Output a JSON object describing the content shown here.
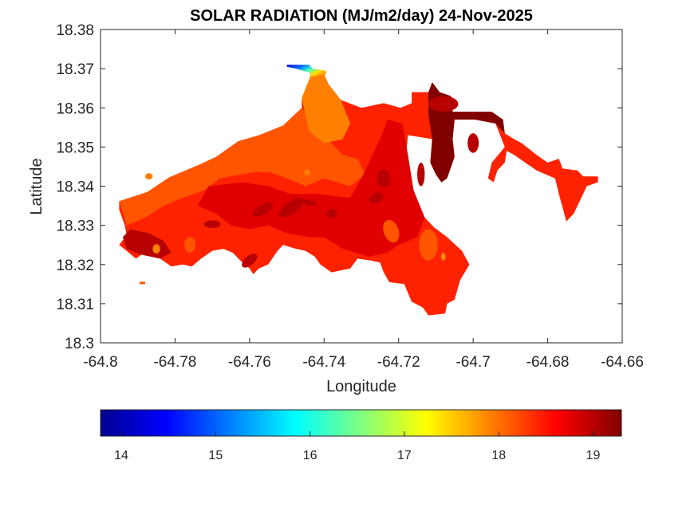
{
  "chart_data": {
    "type": "heatmap",
    "subtype": "filled-contour-map",
    "title": "SOLAR RADIATION (MJ/m2/day) 24-Nov-2025",
    "xlabel": "Longitude",
    "ylabel": "Latitude",
    "xlim": [
      -64.8,
      -64.66
    ],
    "ylim": [
      18.3,
      18.38
    ],
    "xticks": [
      -64.8,
      -64.78,
      -64.76,
      -64.74,
      -64.72,
      -64.7,
      -64.68,
      -64.66
    ],
    "xtick_labels": [
      "-64.8",
      "-64.78",
      "-64.76",
      "-64.74",
      "-64.72",
      "-64.7",
      "-64.68",
      "-64.66"
    ],
    "yticks": [
      18.3,
      18.31,
      18.32,
      18.33,
      18.34,
      18.35,
      18.36,
      18.37,
      18.38
    ],
    "ytick_labels": [
      "18.3",
      "18.31",
      "18.32",
      "18.33",
      "18.34",
      "18.35",
      "18.36",
      "18.37",
      "18.38"
    ],
    "grid": false,
    "colormap": "jet",
    "colorbar": {
      "placement": "bottom",
      "range": [
        13.78,
        19.3
      ],
      "ticks": [
        14,
        15,
        16,
        17,
        18,
        19
      ],
      "tick_labels": [
        "14",
        "15",
        "16",
        "17",
        "18",
        "19"
      ],
      "stops": [
        "#00008f",
        "#0000ff",
        "#00ffff",
        "#ffff00",
        "#ff0000",
        "#800000"
      ]
    },
    "levels": {
      "orange_light": {
        "value": 18.0,
        "color": "#ff8000"
      },
      "orange": {
        "value": 18.3,
        "color": "#ff5500"
      },
      "red_orange": {
        "value": 18.6,
        "color": "#ff2200"
      },
      "red": {
        "value": 18.8,
        "color": "#e00000"
      },
      "dark_red": {
        "value": 19.0,
        "color": "#b80000"
      },
      "maroon": {
        "value": 19.25,
        "color": "#800000"
      }
    },
    "regions": [
      {
        "name": "island-base",
        "level": "red_orange",
        "polygon": [
          [
            -64.7925,
            18.3362
          ],
          [
            -64.7875,
            18.3362
          ],
          [
            -64.7875,
            18.3385
          ],
          [
            -64.7815,
            18.3385
          ],
          [
            -64.7815,
            18.3423
          ],
          [
            -64.7735,
            18.3423
          ],
          [
            -64.7735,
            18.3455
          ],
          [
            -64.769,
            18.3455
          ],
          [
            -64.769,
            18.3475
          ],
          [
            -64.763,
            18.3475
          ],
          [
            -64.763,
            18.3515
          ],
          [
            -64.7575,
            18.3515
          ],
          [
            -64.7575,
            18.353
          ],
          [
            -64.751,
            18.353
          ],
          [
            -64.751,
            18.3555
          ],
          [
            -64.746,
            18.3555
          ],
          [
            -64.746,
            18.3625
          ],
          [
            -64.7435,
            18.3625
          ],
          [
            -64.7435,
            18.3685
          ],
          [
            -64.74,
            18.3685
          ],
          [
            -64.7388,
            18.366
          ],
          [
            -64.7355,
            18.362
          ],
          [
            -64.73,
            18.36
          ],
          [
            -64.724,
            18.3612
          ],
          [
            -64.7195,
            18.36
          ],
          [
            -64.7165,
            18.3612
          ],
          [
            -64.7165,
            18.364
          ],
          [
            -64.712,
            18.364
          ],
          [
            -64.711,
            18.3665
          ],
          [
            -64.709,
            18.364
          ],
          [
            -64.706,
            18.363
          ],
          [
            -64.7055,
            18.359
          ],
          [
            -64.7005,
            18.359
          ],
          [
            -64.699,
            18.359
          ],
          [
            -64.695,
            18.359
          ],
          [
            -64.692,
            18.357
          ],
          [
            -64.6915,
            18.3535
          ],
          [
            -64.689,
            18.352
          ],
          [
            -64.687,
            18.351
          ],
          [
            -64.683,
            18.348
          ],
          [
            -64.68,
            18.346
          ],
          [
            -64.677,
            18.347
          ],
          [
            -64.676,
            18.3445
          ],
          [
            -64.672,
            18.344
          ],
          [
            -64.6705,
            18.3425
          ],
          [
            -64.6665,
            18.3425
          ],
          [
            -64.6665,
            18.341
          ],
          [
            -64.6695,
            18.34
          ],
          [
            -64.671,
            18.337
          ],
          [
            -64.673,
            18.333
          ],
          [
            -64.675,
            18.331
          ],
          [
            -64.676,
            18.3345
          ],
          [
            -64.677,
            18.338
          ],
          [
            -64.678,
            18.342
          ],
          [
            -64.6805,
            18.343
          ],
          [
            -64.683,
            18.344
          ],
          [
            -64.686,
            18.346
          ],
          [
            -64.689,
            18.348
          ],
          [
            -64.691,
            18.349
          ],
          [
            -64.6915,
            18.346
          ],
          [
            -64.6935,
            18.344
          ],
          [
            -64.6945,
            18.341
          ],
          [
            -64.696,
            18.342
          ],
          [
            -64.695,
            18.346
          ],
          [
            -64.6915,
            18.35
          ],
          [
            -64.694,
            18.356
          ],
          [
            -64.6995,
            18.357
          ],
          [
            -64.705,
            18.357
          ],
          [
            -64.7055,
            18.352
          ],
          [
            -64.705,
            18.3475
          ],
          [
            -64.707,
            18.342
          ],
          [
            -64.7085,
            18.341
          ],
          [
            -64.71,
            18.343
          ],
          [
            -64.7115,
            18.346
          ],
          [
            -64.711,
            18.352
          ],
          [
            -64.714,
            18.3525
          ],
          [
            -64.7175,
            18.353
          ],
          [
            -64.718,
            18.348
          ],
          [
            -64.7175,
            18.342
          ],
          [
            -64.716,
            18.339
          ],
          [
            -64.7145,
            18.335
          ],
          [
            -64.713,
            18.332
          ],
          [
            -64.7105,
            18.3295
          ],
          [
            -64.707,
            18.327
          ],
          [
            -64.703,
            18.3235
          ],
          [
            -64.701,
            18.32
          ],
          [
            -64.7035,
            18.316
          ],
          [
            -64.705,
            18.311
          ],
          [
            -64.707,
            18.31
          ],
          [
            -64.7075,
            18.3075
          ],
          [
            -64.712,
            18.307
          ],
          [
            -64.7135,
            18.309
          ],
          [
            -64.7165,
            18.3105
          ],
          [
            -64.7185,
            18.315
          ],
          [
            -64.7225,
            18.3155
          ],
          [
            -64.724,
            18.318
          ],
          [
            -64.725,
            18.3205
          ],
          [
            -64.7275,
            18.321
          ],
          [
            -64.731,
            18.3215
          ],
          [
            -64.733,
            18.319
          ],
          [
            -64.738,
            18.318
          ],
          [
            -64.741,
            18.32
          ],
          [
            -64.7425,
            18.322
          ],
          [
            -64.745,
            18.3235
          ],
          [
            -64.7475,
            18.324
          ],
          [
            -64.751,
            18.325
          ],
          [
            -64.7525,
            18.3235
          ],
          [
            -64.755,
            18.32
          ],
          [
            -64.7575,
            18.319
          ],
          [
            -64.759,
            18.3175
          ],
          [
            -64.76,
            18.319
          ],
          [
            -64.7625,
            18.321
          ],
          [
            -64.7645,
            18.323
          ],
          [
            -64.767,
            18.324
          ],
          [
            -64.77,
            18.3235
          ],
          [
            -64.773,
            18.3215
          ],
          [
            -64.7755,
            18.3195
          ],
          [
            -64.778,
            18.32
          ],
          [
            -64.781,
            18.3195
          ],
          [
            -64.784,
            18.3215
          ],
          [
            -64.787,
            18.3225
          ],
          [
            -64.789,
            18.3225
          ],
          [
            -64.7905,
            18.3215
          ],
          [
            -64.793,
            18.3235
          ],
          [
            -64.795,
            18.325
          ],
          [
            -64.793,
            18.3275
          ],
          [
            -64.7935,
            18.33
          ],
          [
            -64.795,
            18.334
          ],
          [
            -64.795,
            18.3362
          ]
        ]
      },
      {
        "name": "orange-west-band",
        "level": "orange",
        "polygon": [
          [
            -64.795,
            18.3362
          ],
          [
            -64.7875,
            18.3385
          ],
          [
            -64.7815,
            18.3423
          ],
          [
            -64.7735,
            18.3455
          ],
          [
            -64.769,
            18.3475
          ],
          [
            -64.763,
            18.3515
          ],
          [
            -64.7575,
            18.353
          ],
          [
            -64.751,
            18.3555
          ],
          [
            -64.746,
            18.36
          ],
          [
            -64.742,
            18.355
          ],
          [
            -64.735,
            18.348
          ],
          [
            -64.731,
            18.347
          ],
          [
            -64.729,
            18.343
          ],
          [
            -64.733,
            18.34
          ],
          [
            -64.74,
            18.342
          ],
          [
            -64.745,
            18.34
          ],
          [
            -64.75,
            18.342
          ],
          [
            -64.756,
            18.344
          ],
          [
            -64.762,
            18.343
          ],
          [
            -64.768,
            18.342
          ],
          [
            -64.772,
            18.339
          ],
          [
            -64.778,
            18.337
          ],
          [
            -64.783,
            18.335
          ],
          [
            -64.788,
            18.332
          ],
          [
            -64.793,
            18.33
          ]
        ]
      },
      {
        "name": "orange-north-lobe",
        "level": "orange_light",
        "polygon": [
          [
            -64.746,
            18.3625
          ],
          [
            -64.7435,
            18.3685
          ],
          [
            -64.74,
            18.3685
          ],
          [
            -64.7388,
            18.366
          ],
          [
            -64.7355,
            18.362
          ],
          [
            -64.733,
            18.356
          ],
          [
            -64.735,
            18.352
          ],
          [
            -64.74,
            18.351
          ],
          [
            -64.744,
            18.354
          ]
        ]
      },
      {
        "name": "red-central-core",
        "level": "red",
        "polygon": [
          [
            -64.771,
            18.34
          ],
          [
            -64.762,
            18.341
          ],
          [
            -64.755,
            18.34
          ],
          [
            -64.749,
            18.338
          ],
          [
            -64.742,
            18.338
          ],
          [
            -64.733,
            18.337
          ],
          [
            -64.73,
            18.342
          ],
          [
            -64.727,
            18.348
          ],
          [
            -64.725,
            18.352
          ],
          [
            -64.723,
            18.357
          ],
          [
            -64.719,
            18.356
          ],
          [
            -64.7175,
            18.348
          ],
          [
            -64.716,
            18.339
          ],
          [
            -64.713,
            18.332
          ],
          [
            -64.715,
            18.327
          ],
          [
            -64.72,
            18.325
          ],
          [
            -64.723,
            18.323
          ],
          [
            -64.728,
            18.322
          ],
          [
            -64.735,
            18.324
          ],
          [
            -64.74,
            18.327
          ],
          [
            -64.744,
            18.327
          ],
          [
            -64.75,
            18.328
          ],
          [
            -64.755,
            18.33
          ],
          [
            -64.76,
            18.329
          ],
          [
            -64.765,
            18.33
          ],
          [
            -64.769,
            18.333
          ],
          [
            -64.774,
            18.335
          ]
        ]
      },
      {
        "name": "maroon-northeast",
        "level": "maroon",
        "polygon": [
          [
            -64.712,
            18.364
          ],
          [
            -64.711,
            18.3665
          ],
          [
            -64.709,
            18.364
          ],
          [
            -64.706,
            18.363
          ],
          [
            -64.7055,
            18.359
          ],
          [
            -64.695,
            18.359
          ],
          [
            -64.692,
            18.357
          ],
          [
            -64.6915,
            18.3535
          ],
          [
            -64.694,
            18.356
          ],
          [
            -64.6995,
            18.357
          ],
          [
            -64.705,
            18.357
          ],
          [
            -64.7055,
            18.352
          ],
          [
            -64.705,
            18.3475
          ],
          [
            -64.707,
            18.342
          ],
          [
            -64.7085,
            18.341
          ],
          [
            -64.71,
            18.343
          ],
          [
            -64.7115,
            18.346
          ],
          [
            -64.711,
            18.352
          ],
          [
            -64.712,
            18.358
          ]
        ]
      },
      {
        "name": "dark-red-southwest",
        "level": "dark_red",
        "polygon": [
          [
            -64.792,
            18.329
          ],
          [
            -64.787,
            18.328
          ],
          [
            -64.783,
            18.326
          ],
          [
            -64.781,
            18.323
          ],
          [
            -64.784,
            18.3215
          ],
          [
            -64.789,
            18.3225
          ],
          [
            -64.793,
            18.324
          ],
          [
            -64.794,
            18.327
          ]
        ]
      }
    ],
    "notable_features": [
      {
        "name": "low-value-northern-tip",
        "value_range": [
          13.8,
          17.2
        ],
        "lon": -64.745,
        "lat": 18.3705
      }
    ]
  }
}
